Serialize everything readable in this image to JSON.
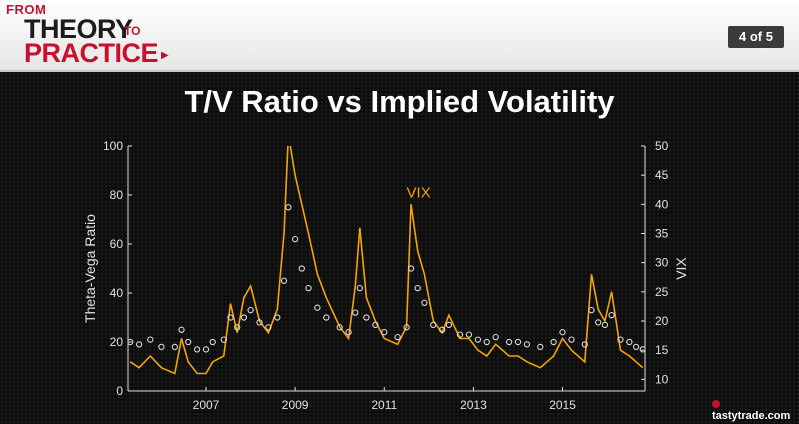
{
  "header": {
    "logo_from": "FROM",
    "logo_theory": "THEORY",
    "logo_to": "TO",
    "logo_practice": "PRACTICE",
    "page_indicator": "4 of 5"
  },
  "brand": "tastytrade.com",
  "colors": {
    "vix": "#f5a300",
    "ratio": "#d9d9d9",
    "axis": "#e0e0e0"
  },
  "chart_data": {
    "type": "line",
    "title": "T/V Ratio vs Implied Volatility",
    "ylabel": "Theta-Vega Ratio",
    "y2label": "VIX",
    "annotation": "VIX",
    "xlim": [
      2005.25,
      2016.85
    ],
    "ylim": [
      0,
      100
    ],
    "y2lim": [
      8,
      50
    ],
    "xticks": [
      2007,
      2009,
      2011,
      2013,
      2015
    ],
    "yticks": [
      0,
      20,
      40,
      60,
      80,
      100
    ],
    "y2ticks": [
      10,
      15,
      20,
      25,
      30,
      35,
      40,
      45,
      50
    ],
    "series": [
      {
        "name": "VIX",
        "axis": "right",
        "style": "line",
        "x": [
          2005.3,
          2005.5,
          2005.75,
          2006.0,
          2006.3,
          2006.45,
          2006.6,
          2006.8,
          2007.0,
          2007.15,
          2007.4,
          2007.55,
          2007.7,
          2007.85,
          2008.0,
          2008.2,
          2008.4,
          2008.6,
          2008.75,
          2008.85,
          2009.0,
          2009.15,
          2009.3,
          2009.5,
          2009.7,
          2010.0,
          2010.2,
          2010.35,
          2010.45,
          2010.6,
          2010.8,
          2011.0,
          2011.3,
          2011.5,
          2011.6,
          2011.75,
          2011.9,
          2012.1,
          2012.3,
          2012.45,
          2012.7,
          2012.9,
          2013.1,
          2013.3,
          2013.5,
          2013.8,
          2014.0,
          2014.2,
          2014.5,
          2014.8,
          2015.0,
          2015.2,
          2015.5,
          2015.65,
          2015.8,
          2015.95,
          2016.1,
          2016.3,
          2016.5,
          2016.65,
          2016.8
        ],
        "values": [
          13,
          12,
          14,
          12,
          11,
          17,
          13,
          11,
          11,
          13,
          14,
          23,
          18,
          24,
          26,
          20,
          18,
          22,
          35,
          52,
          45,
          40,
          35,
          28,
          24,
          19,
          17,
          26,
          36,
          24,
          20,
          17,
          16,
          19,
          40,
          32,
          28,
          20,
          18,
          21,
          17,
          17,
          15,
          14,
          16,
          14,
          14,
          13,
          12,
          14,
          17,
          15,
          13,
          28,
          22,
          20,
          25,
          15,
          14,
          13,
          12
        ]
      },
      {
        "name": "Theta-Vega Ratio",
        "axis": "left",
        "style": "dots",
        "x": [
          2005.3,
          2005.5,
          2005.75,
          2006.0,
          2006.3,
          2006.45,
          2006.6,
          2006.8,
          2007.0,
          2007.15,
          2007.4,
          2007.55,
          2007.7,
          2007.85,
          2008.0,
          2008.2,
          2008.4,
          2008.6,
          2008.75,
          2008.85,
          2009.0,
          2009.15,
          2009.3,
          2009.5,
          2009.7,
          2010.0,
          2010.2,
          2010.35,
          2010.45,
          2010.6,
          2010.8,
          2011.0,
          2011.3,
          2011.5,
          2011.6,
          2011.75,
          2011.9,
          2012.1,
          2012.3,
          2012.45,
          2012.7,
          2012.9,
          2013.1,
          2013.3,
          2013.5,
          2013.8,
          2014.0,
          2014.2,
          2014.5,
          2014.8,
          2015.0,
          2015.2,
          2015.5,
          2015.65,
          2015.8,
          2015.95,
          2016.1,
          2016.3,
          2016.5,
          2016.65,
          2016.8
        ],
        "values": [
          20,
          19,
          21,
          18,
          18,
          25,
          20,
          17,
          17,
          20,
          21,
          30,
          26,
          30,
          33,
          28,
          26,
          30,
          45,
          75,
          62,
          50,
          42,
          34,
          30,
          26,
          24,
          32,
          42,
          30,
          27,
          24,
          22,
          26,
          50,
          42,
          36,
          27,
          25,
          27,
          23,
          23,
          21,
          20,
          22,
          20,
          20,
          19,
          18,
          20,
          24,
          21,
          19,
          33,
          28,
          27,
          31,
          21,
          20,
          18,
          17
        ]
      }
    ]
  }
}
